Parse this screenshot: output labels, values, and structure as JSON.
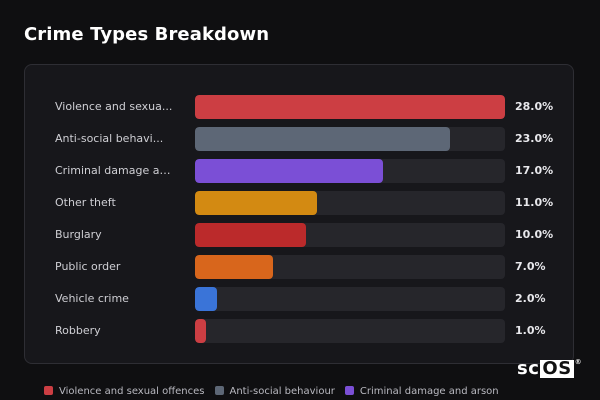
{
  "chart_data": {
    "type": "bar",
    "orientation": "horizontal",
    "title": "Crime Types Breakdown",
    "categories": [
      "Violence and sexual offences",
      "Anti-social behaviour",
      "Criminal damage and arson",
      "Other theft",
      "Burglary",
      "Public order",
      "Vehicle crime",
      "Robbery"
    ],
    "display_labels": [
      "Violence and sexua...",
      "Anti-social behavi...",
      "Criminal damage an...",
      "Other theft",
      "Burglary",
      "Public order",
      "Vehicle crime",
      "Robbery"
    ],
    "values": [
      28.0,
      23.0,
      17.0,
      11.0,
      10.0,
      7.0,
      2.0,
      1.0
    ],
    "value_labels": [
      "28.0%",
      "23.0%",
      "17.0%",
      "11.0%",
      "10.0%",
      "7.0%",
      "2.0%",
      "1.0%"
    ],
    "colors": [
      "#cc3e43",
      "#5d6776",
      "#7b4fd6",
      "#d38a12",
      "#bb2a2b",
      "#d8661c",
      "#3a74d8",
      "#cc3e43"
    ],
    "xlim": [
      0,
      28
    ],
    "legend": {
      "placement": "bottom",
      "items": [
        {
          "label": "Violence and sexual offences",
          "color": "#cc3e43"
        },
        {
          "label": "Anti-social behaviour",
          "color": "#5d6776"
        },
        {
          "label": "Criminal damage and arson",
          "color": "#7b4fd6"
        }
      ]
    }
  },
  "watermark": {
    "prefix": "sc",
    "boxed": "OS",
    "mark": "®"
  }
}
